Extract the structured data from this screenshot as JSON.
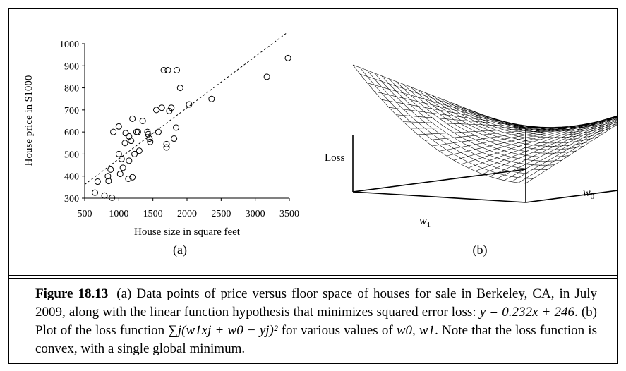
{
  "panel_a": {
    "label": "(a)",
    "chart_data": {
      "type": "scatter",
      "title": "",
      "xlabel": "House size in square feet",
      "ylabel": "House price in $1000",
      "xlim": [
        500,
        3500
      ],
      "ylim": [
        300,
        1000
      ],
      "xticks": [
        "500",
        "1000",
        "1500",
        "2000",
        "2500",
        "3000",
        "3500"
      ],
      "yticks": [
        "300",
        "400",
        "500",
        "600",
        "700",
        "800",
        "900",
        "1000"
      ],
      "grid": false,
      "fit_line": {
        "slope": 0.232,
        "intercept": 246,
        "style": "dashed",
        "x_range": [
          500,
          3450
        ]
      },
      "points": [
        [
          650,
          325
        ],
        [
          690,
          375
        ],
        [
          790,
          312
        ],
        [
          840,
          400
        ],
        [
          850,
          378
        ],
        [
          880,
          430
        ],
        [
          900,
          302
        ],
        [
          920,
          600
        ],
        [
          1000,
          625
        ],
        [
          1000,
          500
        ],
        [
          1020,
          410
        ],
        [
          1040,
          478
        ],
        [
          1060,
          438
        ],
        [
          1090,
          550
        ],
        [
          1100,
          595
        ],
        [
          1140,
          388
        ],
        [
          1150,
          470
        ],
        [
          1150,
          580
        ],
        [
          1180,
          560
        ],
        [
          1200,
          660
        ],
        [
          1200,
          395
        ],
        [
          1230,
          500
        ],
        [
          1260,
          600
        ],
        [
          1280,
          600
        ],
        [
          1300,
          515
        ],
        [
          1350,
          650
        ],
        [
          1420,
          600
        ],
        [
          1430,
          590
        ],
        [
          1450,
          570
        ],
        [
          1460,
          555
        ],
        [
          1550,
          700
        ],
        [
          1580,
          600
        ],
        [
          1630,
          710
        ],
        [
          1660,
          880
        ],
        [
          1700,
          530
        ],
        [
          1700,
          545
        ],
        [
          1720,
          880
        ],
        [
          1740,
          695
        ],
        [
          1770,
          710
        ],
        [
          1810,
          570
        ],
        [
          1840,
          620
        ],
        [
          1850,
          880
        ],
        [
          1900,
          800
        ],
        [
          2030,
          725
        ],
        [
          2360,
          750
        ],
        [
          3170,
          850
        ],
        [
          3480,
          935
        ]
      ]
    }
  },
  "panel_b": {
    "label": "(b)",
    "zlabel": "Loss",
    "xlabel": "w",
    "xlabel_sub": "1",
    "ylabel": "w",
    "ylabel_sub": "0"
  },
  "caption": {
    "fig_label": "Figure 18.13",
    "text_1": "(a) Data points of price versus floor space of houses for sale in Berkeley, CA, in July 2009, along with the linear function hypothesis that minimizes squared error loss: ",
    "eq_1": "y = 0.232x + 246",
    "text_2": ". (b) Plot of the loss function ",
    "eq_2": "∑j(w1xj + w0 − yj)²",
    "text_3": " for various values of ",
    "eq_3": "w0, w1",
    "text_4": ". Note that the loss function is convex, with a single global minimum."
  }
}
